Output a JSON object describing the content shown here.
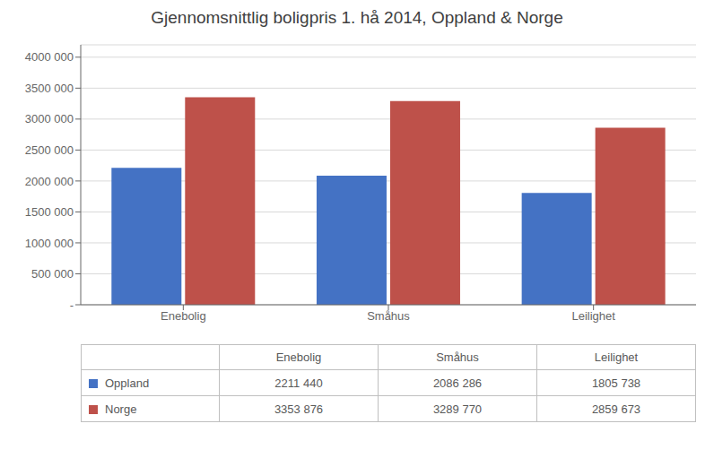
{
  "chart_data": {
    "type": "bar",
    "title": "Gjennomsnittlig boligpris 1. hå 2014, Oppland & Norge",
    "categories": [
      "Enebolig",
      "Småhus",
      "Leilighet"
    ],
    "series": [
      {
        "name": "Oppland",
        "color": "#4472C4",
        "values": [
          2211440,
          2086286,
          1805738
        ],
        "value_labels": [
          "2211 440",
          "2086 286",
          "1805 738"
        ]
      },
      {
        "name": "Norge",
        "color": "#BE514A",
        "values": [
          3353876,
          3289770,
          2859673
        ],
        "value_labels": [
          "3353 876",
          "3289 770",
          "2859 673"
        ]
      }
    ],
    "ylim": [
      0,
      4200000
    ],
    "yticks": [
      {
        "value": 0,
        "label": "-"
      },
      {
        "value": 500000,
        "label": "500 000"
      },
      {
        "value": 1000000,
        "label": "1000 000"
      },
      {
        "value": 1500000,
        "label": "1500 000"
      },
      {
        "value": 2000000,
        "label": "2000 000"
      },
      {
        "value": 2500000,
        "label": "2500 000"
      },
      {
        "value": 3000000,
        "label": "3000 000"
      },
      {
        "value": 3500000,
        "label": "3500 000"
      },
      {
        "value": 4000000,
        "label": "4000 000"
      }
    ],
    "grid": true
  }
}
